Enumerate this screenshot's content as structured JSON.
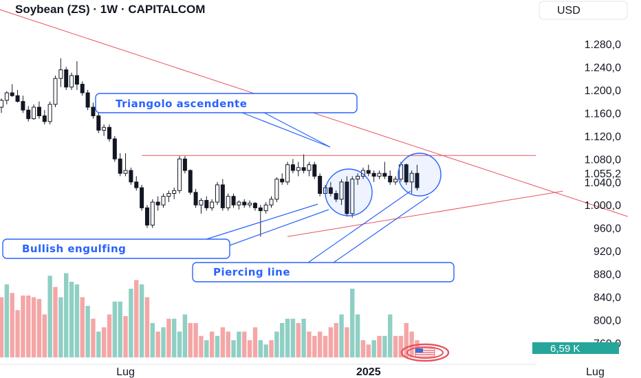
{
  "header": {
    "title": "Soybean (ZS) · 1W · CAPITALCOM",
    "currency": "USD"
  },
  "colors": {
    "up": "#131722",
    "down": "#131722",
    "vol_up": "#8fcfc4",
    "vol_down": "#f4a6a6",
    "trendline": "#e8535f",
    "annotation": "#2962ff",
    "volume_badge": "#26a69a"
  },
  "volume_badge": {
    "label": "6,59 K"
  },
  "chart_data": {
    "type": "candlestick",
    "title": "Soybean (ZS) · 1W · CAPITALCOM",
    "y_unit": "USD",
    "ylim": [
      735,
      1305
    ],
    "y_ticks": [
      1280,
      1240,
      1200,
      1160,
      1120,
      1080,
      1040,
      1000,
      960,
      920,
      880,
      840,
      800,
      760
    ],
    "y_tick_labels": [
      "1.280,0",
      "1.240,0",
      "1.200,0",
      "1.160,0",
      "1.120,0",
      "1.080,0",
      "1.040,0",
      "1.000,0",
      "960,0",
      "920,0",
      "880,0",
      "840,0",
      "800,0",
      "760,0"
    ],
    "highlighted_prices": [
      {
        "value": 1055.2,
        "label": "1.055,2"
      }
    ],
    "x_labels": [
      {
        "label": "Lug",
        "index": 23
      },
      {
        "label": "2025",
        "index": 68
      },
      {
        "label": "Lug",
        "index": 110
      }
    ],
    "candles": [
      [
        1170,
        1185,
        1160,
        1182
      ],
      [
        1182,
        1198,
        1175,
        1195
      ],
      [
        1195,
        1210,
        1188,
        1190
      ],
      [
        1190,
        1200,
        1178,
        1180
      ],
      [
        1180,
        1190,
        1160,
        1165
      ],
      [
        1165,
        1172,
        1145,
        1150
      ],
      [
        1150,
        1175,
        1148,
        1170
      ],
      [
        1170,
        1180,
        1150,
        1155
      ],
      [
        1155,
        1165,
        1140,
        1145
      ],
      [
        1145,
        1180,
        1140,
        1175
      ],
      [
        1175,
        1225,
        1170,
        1220
      ],
      [
        1220,
        1255,
        1205,
        1235
      ],
      [
        1235,
        1240,
        1200,
        1205
      ],
      [
        1205,
        1230,
        1200,
        1225
      ],
      [
        1225,
        1250,
        1200,
        1210
      ],
      [
        1210,
        1215,
        1190,
        1195
      ],
      [
        1195,
        1200,
        1165,
        1170
      ],
      [
        1170,
        1178,
        1150,
        1155
      ],
      [
        1155,
        1160,
        1125,
        1130
      ],
      [
        1130,
        1140,
        1120,
        1135
      ],
      [
        1135,
        1140,
        1110,
        1115
      ],
      [
        1115,
        1120,
        1075,
        1080
      ],
      [
        1080,
        1090,
        1050,
        1055
      ],
      [
        1055,
        1090,
        1050,
        1060
      ],
      [
        1060,
        1065,
        1035,
        1040
      ],
      [
        1040,
        1050,
        1025,
        1030
      ],
      [
        1030,
        1035,
        990,
        995
      ],
      [
        995,
        1000,
        960,
        965
      ],
      [
        965,
        1010,
        960,
        1005
      ],
      [
        1005,
        1015,
        990,
        1000
      ],
      [
        1000,
        1020,
        995,
        1015
      ],
      [
        1015,
        1025,
        1005,
        1020
      ],
      [
        1020,
        1030,
        1010,
        1025
      ],
      [
        1025,
        1085,
        1020,
        1080
      ],
      [
        1080,
        1085,
        1055,
        1060
      ],
      [
        1060,
        1062,
        1018,
        1022
      ],
      [
        1022,
        1028,
        995,
        1000
      ],
      [
        1000,
        1012,
        985,
        1008
      ],
      [
        1008,
        1015,
        990,
        995
      ],
      [
        995,
        1010,
        990,
        1005
      ],
      [
        1005,
        1040,
        1000,
        1035
      ],
      [
        1035,
        1045,
        990,
        995
      ],
      [
        995,
        1020,
        990,
        1015
      ],
      [
        1015,
        1020,
        995,
        1000
      ],
      [
        1000,
        1008,
        992,
        1005
      ],
      [
        1005,
        1010,
        995,
        1000
      ],
      [
        1000,
        1008,
        995,
        1003
      ],
      [
        1003,
        1005,
        990,
        995
      ],
      [
        995,
        1000,
        945,
        990
      ],
      [
        990,
        1005,
        985,
        1000
      ],
      [
        1000,
        1015,
        995,
        1010
      ],
      [
        1010,
        1048,
        1005,
        1045
      ],
      [
        1045,
        1055,
        1035,
        1040
      ],
      [
        1040,
        1075,
        1035,
        1070
      ],
      [
        1070,
        1080,
        1055,
        1060
      ],
      [
        1060,
        1075,
        1050,
        1065
      ],
      [
        1065,
        1088,
        1055,
        1060
      ],
      [
        1060,
        1075,
        1050,
        1070
      ],
      [
        1070,
        1075,
        1045,
        1050
      ],
      [
        1050,
        1055,
        1015,
        1020
      ],
      [
        1020,
        1035,
        1015,
        1030
      ],
      [
        1030,
        1040,
        1015,
        1020
      ],
      [
        1020,
        1025,
        1005,
        1010
      ],
      [
        1010,
        1045,
        1000,
        1040
      ],
      [
        1040,
        1050,
        980,
        985
      ],
      [
        985,
        1050,
        978,
        1045
      ],
      [
        1045,
        1055,
        1035,
        1050
      ],
      [
        1050,
        1065,
        1045,
        1060
      ],
      [
        1060,
        1070,
        1050,
        1055
      ],
      [
        1055,
        1060,
        1040,
        1050
      ],
      [
        1050,
        1060,
        1045,
        1055
      ],
      [
        1055,
        1075,
        1045,
        1050
      ],
      [
        1050,
        1060,
        1035,
        1040
      ],
      [
        1040,
        1050,
        1035,
        1045
      ],
      [
        1045,
        1075,
        1040,
        1070
      ],
      [
        1070,
        1072,
        1035,
        1040
      ],
      [
        1040,
        1060,
        1020,
        1055
      ],
      [
        1055,
        1070,
        1025,
        1030
      ]
    ],
    "volume": [
      [
        0.7,
        "down"
      ],
      [
        0.85,
        "up"
      ],
      [
        0.75,
        "down"
      ],
      [
        0.55,
        "down"
      ],
      [
        0.72,
        "down"
      ],
      [
        0.72,
        "down"
      ],
      [
        0.7,
        "down"
      ],
      [
        0.68,
        "down"
      ],
      [
        0.5,
        "down"
      ],
      [
        0.95,
        "up"
      ],
      [
        0.82,
        "down"
      ],
      [
        0.7,
        "up"
      ],
      [
        0.98,
        "up"
      ],
      [
        0.88,
        "up"
      ],
      [
        0.85,
        "up"
      ],
      [
        0.7,
        "down"
      ],
      [
        0.6,
        "up"
      ],
      [
        0.45,
        "down"
      ],
      [
        0.3,
        "up"
      ],
      [
        0.35,
        "down"
      ],
      [
        0.5,
        "down"
      ],
      [
        0.65,
        "up"
      ],
      [
        0.65,
        "up"
      ],
      [
        0.48,
        "down"
      ],
      [
        0.8,
        "up"
      ],
      [
        0.9,
        "down"
      ],
      [
        0.85,
        "up"
      ],
      [
        0.7,
        "down"
      ],
      [
        0.4,
        "up"
      ],
      [
        0.3,
        "down"
      ],
      [
        0.35,
        "up"
      ],
      [
        0.45,
        "down"
      ],
      [
        0.45,
        "up"
      ],
      [
        0.3,
        "up"
      ],
      [
        0.5,
        "up"
      ],
      [
        0.4,
        "down"
      ],
      [
        0.4,
        "down"
      ],
      [
        0.25,
        "down"
      ],
      [
        0.2,
        "up"
      ],
      [
        0.3,
        "down"
      ],
      [
        0.25,
        "up"
      ],
      [
        0.35,
        "down"
      ],
      [
        0.3,
        "down"
      ],
      [
        0.2,
        "up"
      ],
      [
        0.3,
        "up"
      ],
      [
        0.3,
        "down"
      ],
      [
        0.2,
        "down"
      ],
      [
        0.35,
        "down"
      ],
      [
        0.2,
        "up"
      ],
      [
        0.15,
        "up"
      ],
      [
        0.2,
        "down"
      ],
      [
        0.3,
        "up"
      ],
      [
        0.4,
        "up"
      ],
      [
        0.45,
        "up"
      ],
      [
        0.45,
        "up"
      ],
      [
        0.4,
        "down"
      ],
      [
        0.45,
        "up"
      ],
      [
        0.3,
        "down"
      ],
      [
        0.25,
        "down"
      ],
      [
        0.3,
        "down"
      ],
      [
        0.25,
        "down"
      ],
      [
        0.35,
        "down"
      ],
      [
        0.4,
        "down"
      ],
      [
        0.5,
        "up"
      ],
      [
        0.35,
        "down"
      ],
      [
        0.8,
        "up"
      ],
      [
        0.5,
        "up"
      ],
      [
        0.2,
        "down"
      ],
      [
        0.15,
        "down"
      ],
      [
        0.2,
        "up"
      ],
      [
        0.25,
        "down"
      ],
      [
        0.25,
        "up"
      ],
      [
        0.5,
        "up"
      ],
      [
        0.25,
        "down"
      ],
      [
        0.25,
        "down"
      ],
      [
        0.4,
        "down"
      ],
      [
        0.3,
        "down"
      ],
      [
        0.2,
        "down"
      ]
    ],
    "lines": [
      {
        "name": "trendline-desc",
        "from": [
          -2,
          1345
        ],
        "to": [
          116,
          980
        ]
      },
      {
        "name": "resistance",
        "from": [
          26,
          1086
        ],
        "to": [
          99,
          1086
        ]
      },
      {
        "name": "trendline-asc",
        "from": [
          53,
          945
        ],
        "to": [
          104,
          1024
        ]
      }
    ]
  },
  "annotations": {
    "triangle": "Triangolo ascendente",
    "engulfing": "Bullish engulfing",
    "piercing": "Piercing line"
  }
}
